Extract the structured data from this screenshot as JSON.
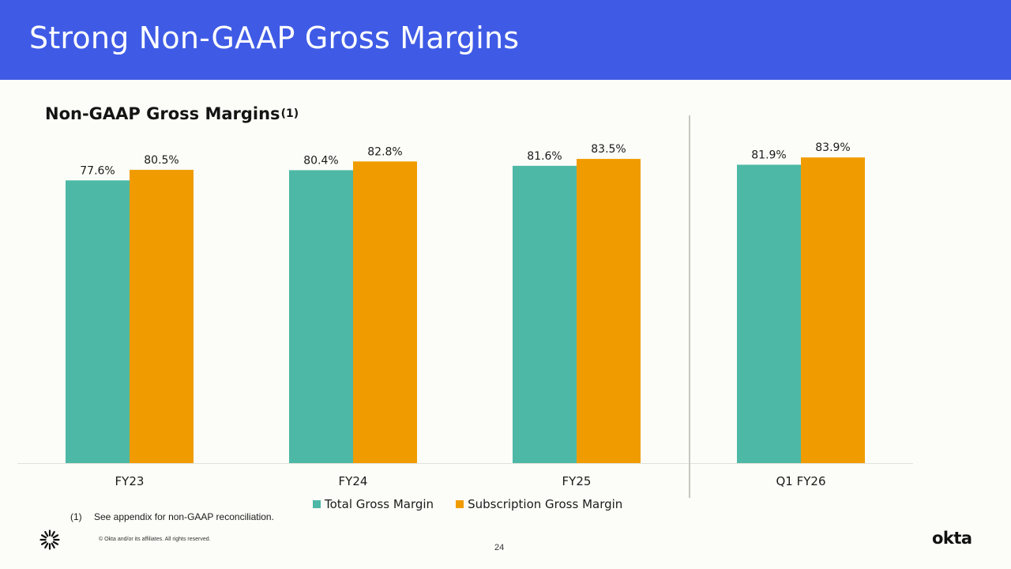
{
  "header": {
    "title": "Strong Non-GAAP Gross Margins"
  },
  "chart_data": {
    "type": "bar",
    "title": "Non-GAAP Gross Margins",
    "title_footnote_marker": "(1)",
    "categories": [
      "FY23",
      "FY24",
      "FY25",
      "Q1 FY26"
    ],
    "series": [
      {
        "name": "Total Gross Margin",
        "color": "#4db8a6",
        "values": [
          77.6,
          80.4,
          81.6,
          81.9
        ],
        "labels": [
          "77.6%",
          "80.4%",
          "81.6%",
          "81.9%"
        ]
      },
      {
        "name": "Subscription Gross Margin",
        "color": "#f09c00",
        "values": [
          80.5,
          82.8,
          83.5,
          83.9
        ],
        "labels": [
          "80.5%",
          "82.8%",
          "83.5%",
          "83.9%"
        ]
      }
    ],
    "ylim": [
      0,
      100
    ],
    "grid": false,
    "legend": "bottom-center",
    "separator_before_category": "Q1 FY26"
  },
  "footnote": {
    "marker": "(1)",
    "text": "See appendix for non-GAAP reconciliation."
  },
  "footer": {
    "copyright": "© Okta and/or its affiliates. All rights reserved.",
    "page_number": "24",
    "brand": "okta",
    "brand_icon": "sunburst-logo-icon"
  }
}
